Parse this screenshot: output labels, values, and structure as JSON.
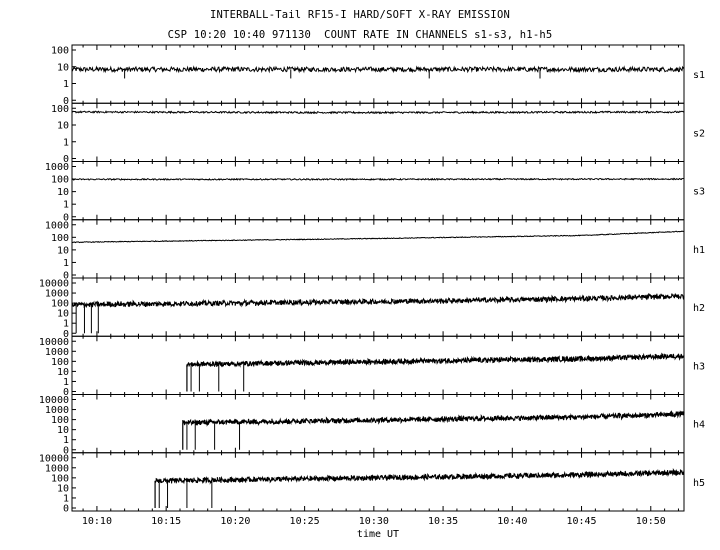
{
  "header": {
    "title": "INTERBALL-Tail RF15-I HARD/SOFT X-RAY EMISSION",
    "subtitle": "CSP 10:20 10:40 971130  COUNT RATE IN CHANNELS s1-s3, h1-h5"
  },
  "chart_data": {
    "type": "line",
    "xlabel": "time UT",
    "x_ticks": [
      "10:10",
      "10:15",
      "10:20",
      "10:25",
      "10:30",
      "10:35",
      "10:40",
      "10:45",
      "10:50"
    ],
    "x_range_minutes": [
      8.2,
      52.4
    ],
    "y_scale": "log (0 shown at bottom)",
    "grid": false,
    "panels": [
      {
        "name": "s1",
        "y_ticks": [
          "100",
          "10",
          "1",
          "0"
        ],
        "y_max": 100,
        "series": [
          {
            "t": 8.2,
            "v": 7
          },
          {
            "t": 30,
            "v": 7
          },
          {
            "t": 52.4,
            "v": 7
          }
        ]
      },
      {
        "name": "s2",
        "y_ticks": [
          "100",
          "10",
          "1",
          "0"
        ],
        "y_max": 100,
        "series": [
          {
            "t": 8.2,
            "v": 60
          },
          {
            "t": 30,
            "v": 55
          },
          {
            "t": 52.4,
            "v": 60
          }
        ]
      },
      {
        "name": "s3",
        "y_ticks": [
          "1000",
          "100",
          "10",
          "1",
          "0"
        ],
        "y_max": 1000,
        "series": [
          {
            "t": 8.2,
            "v": 95
          },
          {
            "t": 30,
            "v": 95
          },
          {
            "t": 52.4,
            "v": 100
          }
        ]
      },
      {
        "name": "h1",
        "y_ticks": [
          "1000",
          "100",
          "10",
          "1",
          "0"
        ],
        "y_max": 1000,
        "series": [
          {
            "t": 8.2,
            "v": 40
          },
          {
            "t": 15,
            "v": 50
          },
          {
            "t": 30,
            "v": 80
          },
          {
            "t": 45,
            "v": 140
          },
          {
            "t": 52.4,
            "v": 300
          }
        ]
      },
      {
        "name": "h2",
        "y_ticks": [
          "10000",
          "1000",
          "100",
          "10",
          "1",
          "0"
        ],
        "y_max": 10000,
        "series": [
          {
            "t": 8.2,
            "v": 70
          },
          {
            "t": 20,
            "v": 100
          },
          {
            "t": 35,
            "v": 170
          },
          {
            "t": 45,
            "v": 280
          },
          {
            "t": 52.4,
            "v": 500
          }
        ]
      },
      {
        "name": "h3",
        "y_ticks": [
          "10000",
          "1000",
          "100",
          "10",
          "1",
          "0"
        ],
        "y_max": 10000,
        "start": 16.5,
        "series": [
          {
            "t": 16.5,
            "v": 50
          },
          {
            "t": 30,
            "v": 90
          },
          {
            "t": 45,
            "v": 180
          },
          {
            "t": 52.4,
            "v": 350
          }
        ]
      },
      {
        "name": "h4",
        "y_ticks": [
          "10000",
          "1000",
          "100",
          "10",
          "1",
          "0"
        ],
        "y_max": 10000,
        "start": 16.2,
        "series": [
          {
            "t": 16.2,
            "v": 50
          },
          {
            "t": 30,
            "v": 90
          },
          {
            "t": 45,
            "v": 180
          },
          {
            "t": 52.4,
            "v": 350
          }
        ]
      },
      {
        "name": "h5",
        "y_ticks": [
          "10000",
          "1000",
          "100",
          "10",
          "1",
          "0"
        ],
        "y_max": 10000,
        "start": 14.2,
        "series": [
          {
            "t": 14.2,
            "v": 50
          },
          {
            "t": 30,
            "v": 100
          },
          {
            "t": 45,
            "v": 200
          },
          {
            "t": 52.4,
            "v": 350
          }
        ]
      }
    ]
  }
}
